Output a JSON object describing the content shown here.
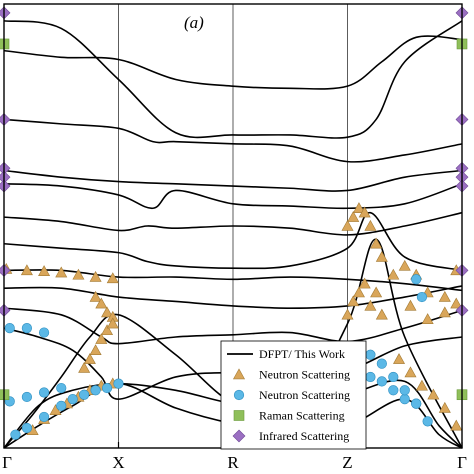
{
  "chart_data": {
    "type": "scatter",
    "panel_label": "(a)",
    "x_ticks": [
      "Γ",
      "X",
      "R",
      "Z",
      "Γ"
    ],
    "x_range": [
      0,
      4
    ],
    "ylim": [
      0,
      10
    ],
    "title": "",
    "xlabel": "",
    "ylabel": "",
    "legend_position": "bottom-right",
    "colors": {
      "line": "#000000",
      "neutron_triangle": "#d9a65a",
      "neutron_circle": "#5bb8e6",
      "raman": "#8fbf5a",
      "infrared": "#9b6fc2",
      "axis": "#000000"
    },
    "legend": [
      {
        "label": "DFPT/ This Work",
        "marker": "line"
      },
      {
        "label": "Neutron Scattering",
        "marker": "triangle"
      },
      {
        "label": "Neutron Scattering",
        "marker": "circle"
      },
      {
        "label": "Raman Scattering",
        "marker": "square"
      },
      {
        "label": "Infrared Scattering",
        "marker": "diamond"
      }
    ],
    "dispersion_lines": [
      [
        [
          0,
          9.62
        ],
        [
          0.5,
          9.45
        ],
        [
          1,
          8.3
        ],
        [
          1.5,
          7.1
        ],
        [
          2,
          7.05
        ],
        [
          2.5,
          7.05
        ],
        [
          3,
          7.0
        ],
        [
          3.25,
          7.4
        ],
        [
          3.5,
          8.7
        ],
        [
          4,
          9.62
        ]
      ],
      [
        [
          0,
          8.95
        ],
        [
          0.5,
          8.8
        ],
        [
          1,
          8.75
        ],
        [
          1.5,
          8.3
        ],
        [
          2,
          8.15
        ],
        [
          2.5,
          8.1
        ],
        [
          3,
          8.15
        ],
        [
          3.3,
          8.7
        ],
        [
          3.6,
          9.25
        ],
        [
          4,
          9.2
        ]
      ],
      [
        [
          0,
          7.4
        ],
        [
          0.5,
          7.3
        ],
        [
          1,
          7.2
        ],
        [
          1.3,
          6.9
        ],
        [
          1.5,
          6.9
        ],
        [
          2,
          6.85
        ],
        [
          2.5,
          6.8
        ],
        [
          3,
          6.45
        ],
        [
          3.5,
          6.6
        ],
        [
          4,
          6.85
        ]
      ],
      [
        [
          0,
          6.25
        ],
        [
          0.5,
          6.1
        ],
        [
          1,
          6.0
        ],
        [
          1.5,
          5.95
        ],
        [
          2,
          5.9
        ],
        [
          2.5,
          5.85
        ],
        [
          3,
          5.8
        ],
        [
          3.5,
          6.1
        ],
        [
          4,
          6.25
        ]
      ],
      [
        [
          0,
          5.95
        ],
        [
          0.5,
          5.9
        ],
        [
          1,
          5.7
        ],
        [
          1.3,
          5.4
        ],
        [
          1.5,
          5.8
        ],
        [
          2,
          5.5
        ],
        [
          2.5,
          5.45
        ],
        [
          3,
          5.4
        ],
        [
          3.5,
          5.5
        ],
        [
          4,
          5.95
        ]
      ],
      [
        [
          0,
          5.2
        ],
        [
          0.5,
          5.1
        ],
        [
          1,
          4.9
        ],
        [
          1.25,
          5.0
        ],
        [
          1.5,
          4.95
        ],
        [
          2,
          5.0
        ],
        [
          2.5,
          4.95
        ],
        [
          3,
          4.8
        ],
        [
          3.5,
          5.0
        ],
        [
          4,
          5.3
        ]
      ],
      [
        [
          0,
          4.6
        ],
        [
          0.5,
          4.5
        ],
        [
          1,
          4.4
        ],
        [
          1.25,
          4.2
        ],
        [
          1.5,
          4.1
        ],
        [
          2,
          4.05
        ],
        [
          2.5,
          4.1
        ],
        [
          3,
          4.5
        ],
        [
          3.2,
          5.3
        ],
        [
          3.5,
          4.3
        ],
        [
          4,
          4.0
        ]
      ],
      [
        [
          0,
          4.0
        ],
        [
          0.5,
          4.0
        ],
        [
          1,
          3.85
        ],
        [
          1.5,
          3.85
        ],
        [
          2,
          3.8
        ],
        [
          2.5,
          3.85
        ],
        [
          3,
          3.8
        ],
        [
          3.5,
          3.7
        ],
        [
          4,
          3.55
        ]
      ],
      [
        [
          0,
          3.6
        ],
        [
          0.5,
          3.6
        ],
        [
          1,
          3.4
        ],
        [
          1.5,
          3.3
        ],
        [
          2,
          3.2
        ],
        [
          2.5,
          3.15
        ],
        [
          3,
          3.2
        ],
        [
          3.5,
          3.4
        ],
        [
          4,
          3.65
        ]
      ],
      [
        [
          0,
          3.15
        ],
        [
          0.5,
          3.0
        ],
        [
          0.85,
          2.5
        ],
        [
          1,
          2.35
        ],
        [
          1.5,
          2.5
        ],
        [
          2,
          2.55
        ],
        [
          2.5,
          2.6
        ],
        [
          3,
          2.4
        ],
        [
          3.5,
          2.7
        ],
        [
          4,
          3.1
        ]
      ],
      [
        [
          0,
          2.7
        ],
        [
          0.3,
          2.5
        ],
        [
          0.6,
          2.2
        ],
        [
          0.85,
          1.6
        ],
        [
          1,
          1.1
        ],
        [
          1.5,
          1.6
        ],
        [
          2,
          1.7
        ],
        [
          2.5,
          1.65
        ],
        [
          3,
          1.75
        ],
        [
          3.5,
          2.3
        ],
        [
          4,
          2.5
        ]
      ],
      [
        [
          0,
          0
        ],
        [
          0.3,
          0.95
        ],
        [
          0.6,
          1.3
        ],
        [
          1,
          1.45
        ],
        [
          1.5,
          1.3
        ],
        [
          2,
          1.0
        ],
        [
          2.5,
          0.9
        ],
        [
          3,
          1.2
        ],
        [
          3.5,
          1.5
        ],
        [
          3.8,
          0.5
        ],
        [
          4,
          0
        ]
      ],
      [
        [
          0,
          0
        ],
        [
          0.3,
          0.5
        ],
        [
          0.6,
          0.95
        ],
        [
          1,
          1.45
        ],
        [
          1.5,
          0.9
        ],
        [
          2,
          0.55
        ],
        [
          2.5,
          0.4
        ],
        [
          3,
          0.5
        ],
        [
          3.5,
          1.1
        ],
        [
          3.8,
          0.3
        ],
        [
          4,
          0
        ]
      ],
      [
        [
          0,
          0
        ],
        [
          0.25,
          0.75
        ],
        [
          0.5,
          1.6
        ],
        [
          0.75,
          2.5
        ],
        [
          1,
          3.0
        ],
        [
          1.5,
          2.1
        ],
        [
          2,
          1.0
        ],
        [
          2.5,
          0.7
        ],
        [
          3,
          2.8
        ],
        [
          3.25,
          4.7
        ],
        [
          3.5,
          2.5
        ],
        [
          4,
          0
        ]
      ]
    ],
    "neutron_triangles": [
      [
        0.02,
        4.03
      ],
      [
        0.2,
        4.0
      ],
      [
        0.35,
        3.98
      ],
      [
        0.5,
        3.95
      ],
      [
        0.65,
        3.9
      ],
      [
        0.8,
        3.85
      ],
      [
        0.95,
        3.82
      ],
      [
        0.8,
        3.4
      ],
      [
        0.85,
        3.25
      ],
      [
        0.9,
        3.05
      ],
      [
        0.95,
        2.95
      ],
      [
        0.25,
        0.4
      ],
      [
        0.35,
        0.65
      ],
      [
        0.45,
        0.85
      ],
      [
        0.55,
        1.0
      ],
      [
        0.65,
        1.15
      ],
      [
        0.75,
        1.3
      ],
      [
        0.85,
        1.4
      ],
      [
        0.95,
        1.45
      ],
      [
        0.7,
        1.8
      ],
      [
        0.75,
        2.0
      ],
      [
        0.8,
        2.2
      ],
      [
        0.85,
        2.45
      ],
      [
        0.9,
        2.65
      ],
      [
        0.95,
        2.8
      ],
      [
        3.0,
        5.0
      ],
      [
        3.05,
        5.2
      ],
      [
        3.1,
        5.4
      ],
      [
        3.15,
        5.3
      ],
      [
        3.2,
        5.0
      ],
      [
        3.25,
        4.6
      ],
      [
        3.3,
        4.3
      ],
      [
        3.4,
        3.9
      ],
      [
        3.5,
        4.1
      ],
      [
        3.6,
        3.9
      ],
      [
        3.7,
        3.5
      ],
      [
        3.85,
        3.4
      ],
      [
        3.95,
        4.0
      ],
      [
        3.0,
        3.0
      ],
      [
        3.05,
        3.3
      ],
      [
        3.1,
        3.5
      ],
      [
        3.15,
        3.7
      ],
      [
        3.2,
        3.2
      ],
      [
        3.25,
        3.5
      ],
      [
        3.3,
        3.0
      ],
      [
        3.55,
        3.2
      ],
      [
        3.7,
        2.9
      ],
      [
        3.85,
        3.05
      ],
      [
        3.95,
        3.25
      ],
      [
        3.45,
        2.0
      ],
      [
        3.55,
        1.7
      ],
      [
        3.65,
        1.4
      ],
      [
        3.75,
        1.2
      ],
      [
        3.85,
        0.9
      ],
      [
        3.95,
        0.5
      ]
    ],
    "neutron_circles": [
      [
        0.05,
        2.7
      ],
      [
        0.2,
        2.7
      ],
      [
        0.35,
        2.6
      ],
      [
        0.1,
        0.3
      ],
      [
        0.2,
        0.45
      ],
      [
        0.35,
        0.7
      ],
      [
        0.5,
        0.95
      ],
      [
        0.6,
        1.1
      ],
      [
        0.7,
        1.2
      ],
      [
        0.8,
        1.3
      ],
      [
        0.9,
        1.35
      ],
      [
        1.0,
        1.45
      ],
      [
        0.05,
        1.05
      ],
      [
        0.2,
        1.15
      ],
      [
        0.35,
        1.25
      ],
      [
        0.5,
        1.35
      ],
      [
        3.0,
        2.2
      ],
      [
        3.1,
        1.9
      ],
      [
        3.2,
        1.6
      ],
      [
        3.3,
        1.5
      ],
      [
        3.4,
        1.3
      ],
      [
        3.5,
        1.1
      ],
      [
        3.6,
        1.0
      ],
      [
        3.6,
        3.8
      ],
      [
        3.65,
        3.4
      ],
      [
        3.2,
        2.1
      ],
      [
        3.3,
        1.9
      ],
      [
        3.4,
        1.6
      ],
      [
        3.5,
        1.3
      ],
      [
        3.6,
        1.0
      ],
      [
        3.7,
        0.6
      ]
    ],
    "raman_squares": [
      [
        0,
        9.1
      ],
      [
        0,
        1.2
      ],
      [
        4,
        9.1
      ],
      [
        4,
        1.2
      ]
    ],
    "infrared_diamonds": [
      [
        0,
        9.8
      ],
      [
        0,
        7.4
      ],
      [
        0,
        6.3
      ],
      [
        0,
        6.1
      ],
      [
        0,
        5.9
      ],
      [
        0,
        4.0
      ],
      [
        0,
        3.1
      ],
      [
        4,
        9.8
      ],
      [
        4,
        7.4
      ],
      [
        4,
        6.3
      ],
      [
        4,
        6.1
      ],
      [
        4,
        5.9
      ],
      [
        4,
        4.0
      ],
      [
        4,
        3.1
      ]
    ]
  }
}
